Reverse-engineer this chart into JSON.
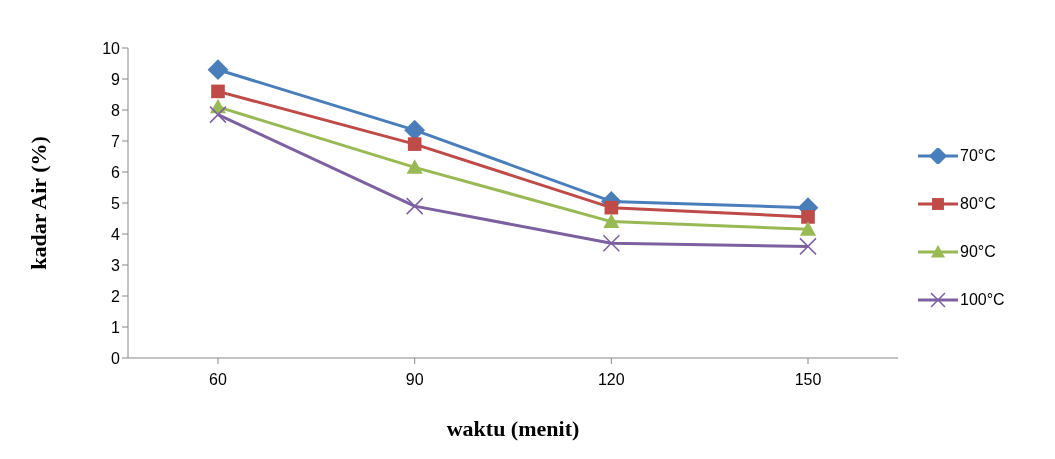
{
  "chart_data": {
    "type": "line",
    "xlabel": "waktu (menit)",
    "ylabel": "kadar Air (%)",
    "categories": [
      "60",
      "90",
      "120",
      "150"
    ],
    "series": [
      {
        "name": "70°C",
        "color": "#4a7ebb",
        "marker": "diamond",
        "values": [
          9.3,
          7.35,
          5.05,
          4.85
        ]
      },
      {
        "name": "80°C",
        "color": "#be4b48",
        "marker": "square",
        "values": [
          8.6,
          6.9,
          4.85,
          4.55
        ]
      },
      {
        "name": "90°C",
        "color": "#98b954",
        "marker": "triangle",
        "values": [
          8.1,
          6.15,
          4.4,
          4.15
        ]
      },
      {
        "name": "100°C",
        "color": "#7d60a0",
        "marker": "cross",
        "values": [
          7.85,
          4.9,
          3.7,
          3.6
        ]
      }
    ],
    "ylim": [
      0,
      10
    ],
    "yticks": [
      0,
      1,
      2,
      3,
      4,
      5,
      6,
      7,
      8,
      9,
      10
    ],
    "grid": false,
    "legend": "right",
    "line_style": "solid"
  }
}
